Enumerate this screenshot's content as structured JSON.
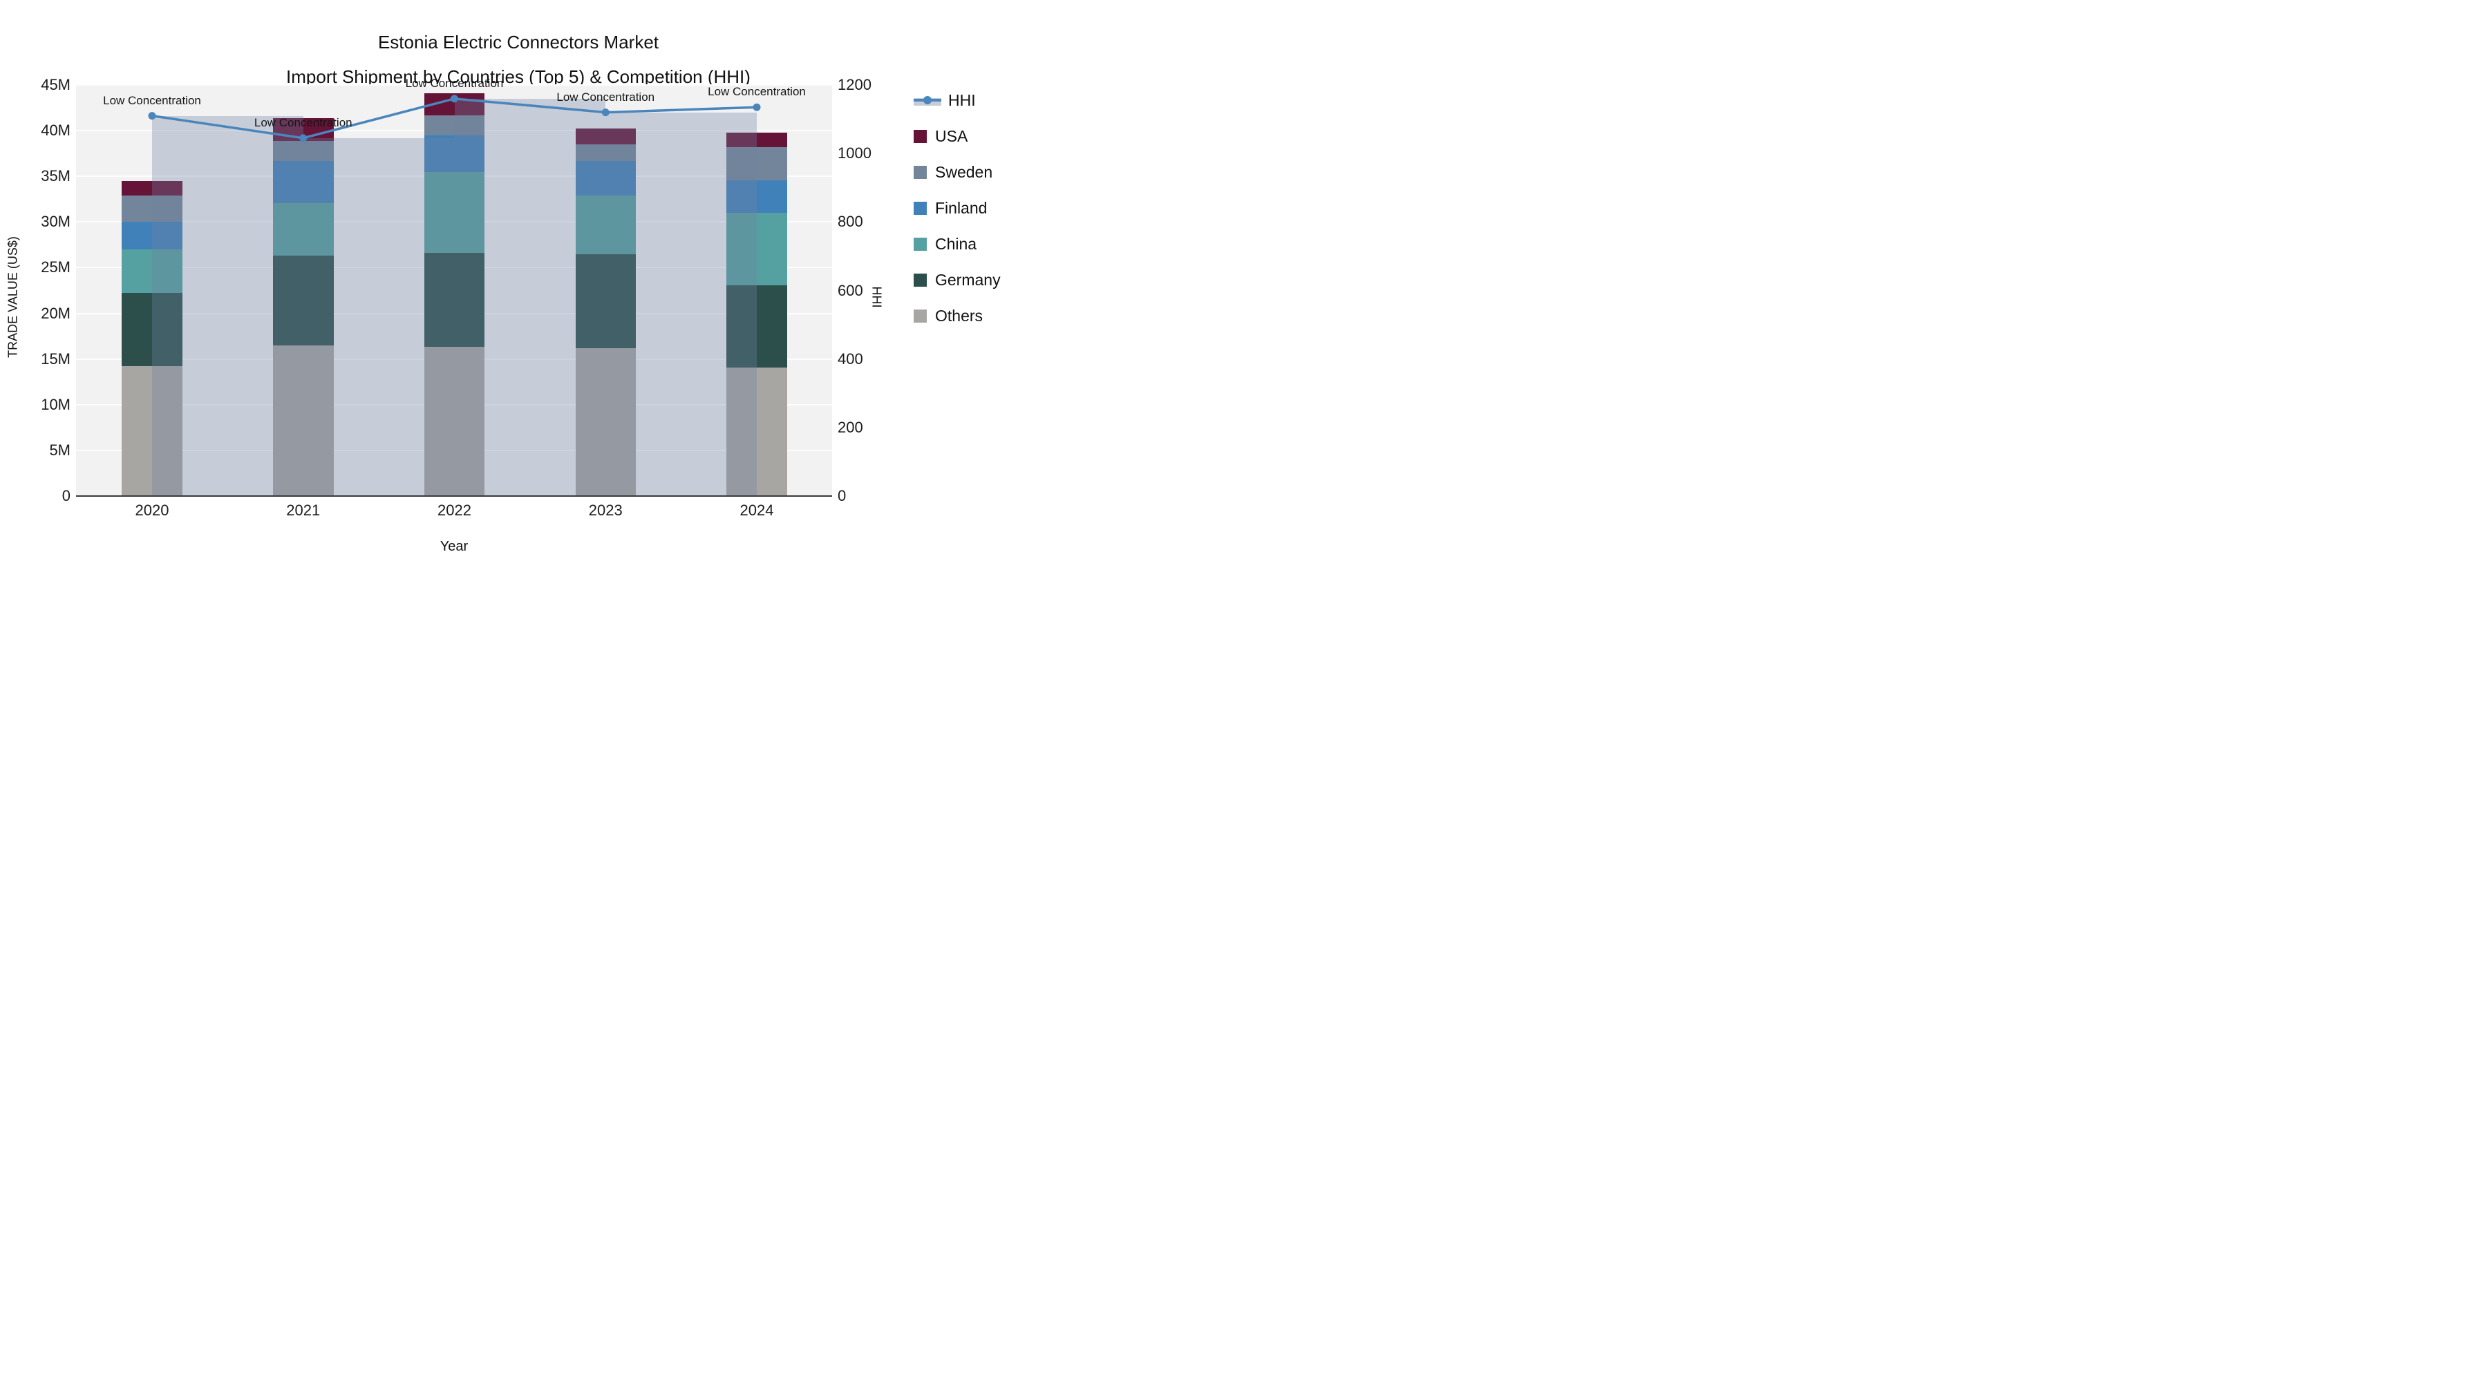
{
  "title": {
    "line1": "Estonia Electric Connectors Market",
    "line2": "Import Shipment by Countries (Top 5) & Competition (HHI)"
  },
  "axes": {
    "y_title": "TRADE VALUE (US$)",
    "x_title": "Year",
    "y2_title": "HHI",
    "y_tick_labels": [
      "0",
      "5M",
      "10M",
      "15M",
      "20M",
      "25M",
      "30M",
      "35M",
      "40M",
      "45M"
    ],
    "y2_tick_labels": [
      "0",
      "200",
      "400",
      "600",
      "800",
      "1000",
      "1200"
    ],
    "y_max_millions": 45,
    "y2_max": 1200
  },
  "chart_data": {
    "type": "bar+line",
    "categories": [
      "2020",
      "2021",
      "2022",
      "2023",
      "2024"
    ],
    "unit": "millions USD",
    "series": [
      {
        "name": "Others",
        "values": [
          14.2,
          16.5,
          16.3,
          16.2,
          14.1
        ],
        "color": "#a8a6a3"
      },
      {
        "name": "Germany",
        "values": [
          8.0,
          9.8,
          10.3,
          10.3,
          9.0
        ],
        "color": "#2c4f4c"
      },
      {
        "name": "China",
        "values": [
          4.8,
          5.8,
          8.9,
          6.4,
          7.9
        ],
        "color": "#55a0a0"
      },
      {
        "name": "Finland",
        "values": [
          3.0,
          4.6,
          4.0,
          3.8,
          3.6
        ],
        "color": "#4181ba"
      },
      {
        "name": "Sweden",
        "values": [
          2.9,
          2.2,
          2.2,
          1.8,
          3.6
        ],
        "color": "#73859a"
      },
      {
        "name": "USA",
        "values": [
          1.6,
          2.5,
          2.4,
          1.7,
          1.6
        ],
        "color": "#651337"
      }
    ],
    "totals_millions": [
      34.5,
      41.4,
      44.1,
      40.2,
      39.8
    ],
    "hhi": {
      "name": "HHI",
      "values": [
        1110,
        1045,
        1160,
        1120,
        1135
      ],
      "line_color": "#4a85bb",
      "bar_color": "rgba(113,131,161,0.33)"
    },
    "annotations": [
      "Low Concentration",
      "Low Concentration",
      "Low Concentration",
      "Low Concentration",
      "Low Concentration"
    ],
    "legend_order": [
      "HHI",
      "USA",
      "Sweden",
      "Finland",
      "China",
      "Germany",
      "Others"
    ],
    "layout_hints": {
      "grid": "horizontal 5M steps, white",
      "legend_position": "right",
      "plot_bg": "#f2f2f3"
    }
  }
}
